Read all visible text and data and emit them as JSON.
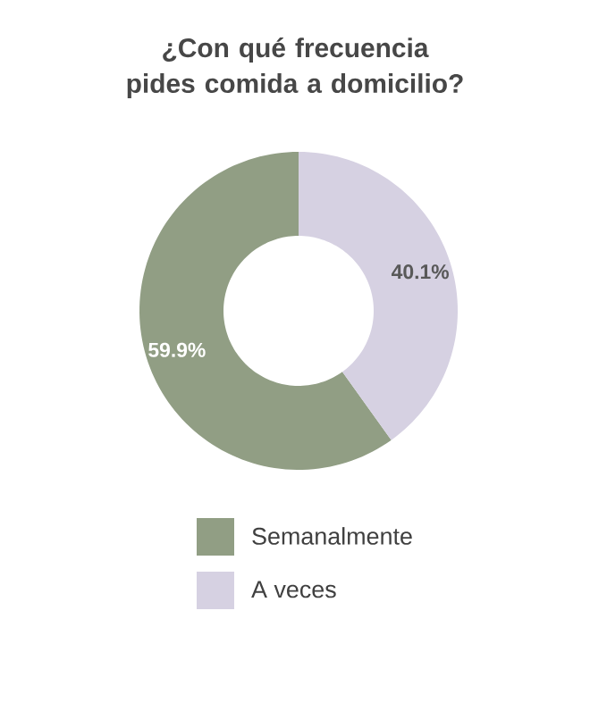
{
  "chart_data": {
    "type": "donut",
    "title": "¿Con qué frecuencia pides comida a domicilio?",
    "categories": [
      "Semanalmente",
      "A veces"
    ],
    "values": [
      59.9,
      40.1
    ],
    "colors": [
      "#919e84",
      "#d6d1e2"
    ],
    "value_labels": [
      "59.9%",
      "40.1%"
    ],
    "legend": "bottom"
  }
}
